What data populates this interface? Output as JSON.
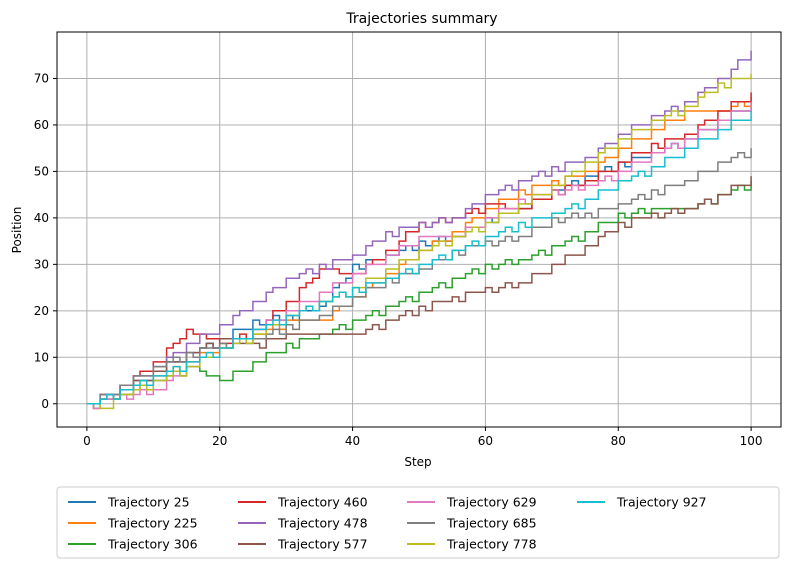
{
  "chart_data": {
    "type": "line",
    "title": "Trajectories summary",
    "xlabel": "Step",
    "ylabel": "Position",
    "xlim": [
      -4.5,
      104.5
    ],
    "ylim": [
      -5,
      80
    ],
    "xticks": [
      0,
      20,
      40,
      60,
      80,
      100
    ],
    "yticks": [
      0,
      10,
      20,
      30,
      40,
      50,
      60,
      70
    ],
    "grid": true,
    "legend": {
      "placement": "bottom-center",
      "columns": 4
    },
    "line_style": "steps-post",
    "series": [
      {
        "name": "Trajectory 25",
        "color": "#1f77b4",
        "points": [
          [
            0,
            0
          ],
          [
            5,
            3
          ],
          [
            10,
            7
          ],
          [
            15,
            11
          ],
          [
            20,
            14
          ],
          [
            25,
            18
          ],
          [
            30,
            19
          ],
          [
            35,
            21
          ],
          [
            40,
            30
          ],
          [
            45,
            32
          ],
          [
            50,
            35
          ],
          [
            55,
            36
          ],
          [
            60,
            40
          ],
          [
            65,
            42
          ],
          [
            70,
            46
          ],
          [
            75,
            49
          ],
          [
            80,
            52
          ],
          [
            85,
            54
          ],
          [
            90,
            57
          ],
          [
            95,
            61
          ],
          [
            100,
            65
          ]
        ]
      },
      {
        "name": "Trajectory 225",
        "color": "#ff7f0e",
        "points": [
          [
            0,
            0
          ],
          [
            5,
            2
          ],
          [
            10,
            6
          ],
          [
            15,
            9
          ],
          [
            20,
            13
          ],
          [
            25,
            15
          ],
          [
            30,
            18
          ],
          [
            35,
            18
          ],
          [
            40,
            23
          ],
          [
            45,
            28
          ],
          [
            50,
            33
          ],
          [
            55,
            37
          ],
          [
            60,
            42
          ],
          [
            65,
            46
          ],
          [
            70,
            48
          ],
          [
            75,
            50
          ],
          [
            80,
            55
          ],
          [
            85,
            59
          ],
          [
            90,
            63
          ],
          [
            95,
            63
          ],
          [
            100,
            66
          ]
        ]
      },
      {
        "name": "Trajectory 306",
        "color": "#2ca02c",
        "points": [
          [
            0,
            0
          ],
          [
            5,
            2
          ],
          [
            10,
            5
          ],
          [
            15,
            8
          ],
          [
            17,
            7
          ],
          [
            20,
            5
          ],
          [
            25,
            9
          ],
          [
            30,
            13
          ],
          [
            35,
            15
          ],
          [
            40,
            18
          ],
          [
            45,
            21
          ],
          [
            50,
            24
          ],
          [
            55,
            27
          ],
          [
            60,
            30
          ],
          [
            65,
            31
          ],
          [
            70,
            34
          ],
          [
            75,
            37
          ],
          [
            80,
            41
          ],
          [
            85,
            42
          ],
          [
            90,
            42
          ],
          [
            95,
            45
          ],
          [
            100,
            48
          ]
        ]
      },
      {
        "name": "Trajectory 460",
        "color": "#d62728",
        "points": [
          [
            0,
            0
          ],
          [
            5,
            4
          ],
          [
            10,
            9
          ],
          [
            15,
            16
          ],
          [
            20,
            13
          ],
          [
            25,
            16
          ],
          [
            30,
            22
          ],
          [
            35,
            29
          ],
          [
            40,
            28
          ],
          [
            45,
            33
          ],
          [
            50,
            39
          ],
          [
            55,
            40
          ],
          [
            60,
            43
          ],
          [
            65,
            42
          ],
          [
            70,
            46
          ],
          [
            75,
            48
          ],
          [
            80,
            52
          ],
          [
            85,
            56
          ],
          [
            90,
            58
          ],
          [
            95,
            63
          ],
          [
            100,
            67
          ]
        ]
      },
      {
        "name": "Trajectory 478",
        "color": "#9467bd",
        "points": [
          [
            0,
            0
          ],
          [
            5,
            4
          ],
          [
            10,
            8
          ],
          [
            15,
            13
          ],
          [
            20,
            17
          ],
          [
            25,
            22
          ],
          [
            30,
            27
          ],
          [
            35,
            30
          ],
          [
            40,
            32
          ],
          [
            45,
            37
          ],
          [
            50,
            39
          ],
          [
            55,
            40
          ],
          [
            60,
            45
          ],
          [
            65,
            48
          ],
          [
            70,
            51
          ],
          [
            75,
            53
          ],
          [
            80,
            58
          ],
          [
            85,
            62
          ],
          [
            90,
            65
          ],
          [
            95,
            70
          ],
          [
            100,
            76
          ]
        ]
      },
      {
        "name": "Trajectory 577",
        "color": "#8c564b",
        "points": [
          [
            0,
            0
          ],
          [
            5,
            3
          ],
          [
            10,
            7
          ],
          [
            15,
            11
          ],
          [
            20,
            14
          ],
          [
            25,
            13
          ],
          [
            30,
            15
          ],
          [
            35,
            15
          ],
          [
            40,
            15
          ],
          [
            45,
            18
          ],
          [
            50,
            21
          ],
          [
            55,
            23
          ],
          [
            60,
            25
          ],
          [
            65,
            26
          ],
          [
            70,
            30
          ],
          [
            75,
            34
          ],
          [
            80,
            39
          ],
          [
            85,
            41
          ],
          [
            90,
            42
          ],
          [
            95,
            45
          ],
          [
            100,
            49
          ]
        ]
      },
      {
        "name": "Trajectory 629",
        "color": "#e377c2",
        "points": [
          [
            0,
            0
          ],
          [
            5,
            2
          ],
          [
            10,
            3
          ],
          [
            15,
            8
          ],
          [
            20,
            12
          ],
          [
            25,
            16
          ],
          [
            30,
            20
          ],
          [
            35,
            24
          ],
          [
            40,
            28
          ],
          [
            45,
            32
          ],
          [
            50,
            36
          ],
          [
            55,
            36
          ],
          [
            60,
            40
          ],
          [
            65,
            44
          ],
          [
            70,
            46
          ],
          [
            75,
            47
          ],
          [
            80,
            50
          ],
          [
            85,
            54
          ],
          [
            90,
            57
          ],
          [
            95,
            61
          ],
          [
            100,
            65
          ]
        ]
      },
      {
        "name": "Trajectory 685",
        "color": "#7f7f7f",
        "points": [
          [
            0,
            0
          ],
          [
            5,
            4
          ],
          [
            10,
            8
          ],
          [
            15,
            11
          ],
          [
            20,
            13
          ],
          [
            25,
            14
          ],
          [
            30,
            17
          ],
          [
            35,
            19
          ],
          [
            40,
            23
          ],
          [
            45,
            27
          ],
          [
            50,
            29
          ],
          [
            55,
            33
          ],
          [
            60,
            35
          ],
          [
            65,
            36
          ],
          [
            70,
            40
          ],
          [
            75,
            41
          ],
          [
            80,
            43
          ],
          [
            85,
            46
          ],
          [
            90,
            48
          ],
          [
            95,
            52
          ],
          [
            100,
            55
          ]
        ]
      },
      {
        "name": "Trajectory 778",
        "color": "#bcbd22",
        "points": [
          [
            0,
            0
          ],
          [
            2,
            -1
          ],
          [
            5,
            2
          ],
          [
            10,
            5
          ],
          [
            15,
            8
          ],
          [
            20,
            12
          ],
          [
            25,
            15
          ],
          [
            30,
            19
          ],
          [
            35,
            22
          ],
          [
            40,
            25
          ],
          [
            45,
            29
          ],
          [
            50,
            33
          ],
          [
            55,
            36
          ],
          [
            60,
            39
          ],
          [
            65,
            43
          ],
          [
            70,
            47
          ],
          [
            75,
            52
          ],
          [
            80,
            57
          ],
          [
            85,
            61
          ],
          [
            90,
            64
          ],
          [
            95,
            69
          ],
          [
            100,
            71
          ]
        ]
      },
      {
        "name": "Trajectory 927",
        "color": "#17becf",
        "points": [
          [
            0,
            0
          ],
          [
            5,
            3
          ],
          [
            10,
            6
          ],
          [
            15,
            9
          ],
          [
            20,
            12
          ],
          [
            25,
            16
          ],
          [
            30,
            19
          ],
          [
            35,
            22
          ],
          [
            40,
            25
          ],
          [
            45,
            27
          ],
          [
            50,
            30
          ],
          [
            55,
            33
          ],
          [
            60,
            36
          ],
          [
            65,
            39
          ],
          [
            70,
            41
          ],
          [
            75,
            44
          ],
          [
            80,
            48
          ],
          [
            85,
            51
          ],
          [
            90,
            55
          ],
          [
            95,
            59
          ],
          [
            100,
            63
          ]
        ]
      }
    ]
  }
}
